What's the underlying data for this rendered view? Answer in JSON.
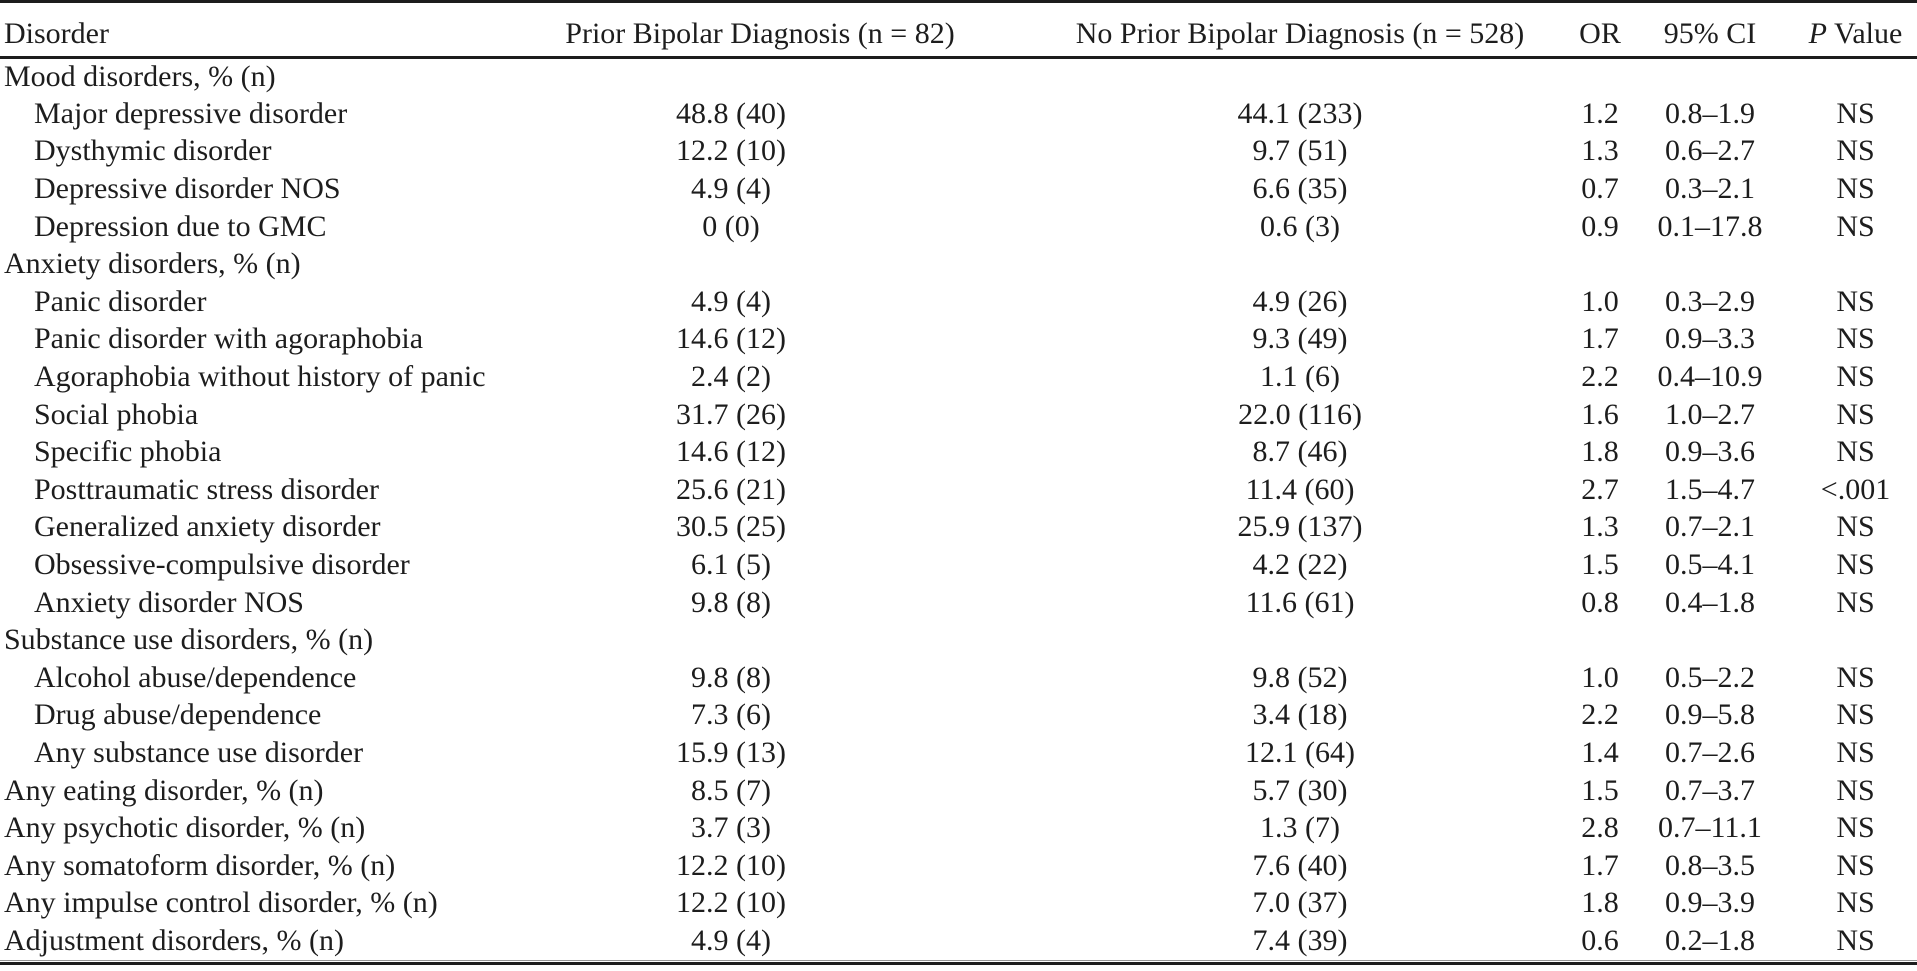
{
  "table": {
    "columns": [
      "Disorder",
      "Prior Bipolar Diagnosis (n = 82)",
      "No Prior Bipolar Diagnosis (n = 528)",
      "OR",
      "95% CI"
    ],
    "p_header": {
      "italic": "P",
      "rest": "Value"
    },
    "rows": [
      {
        "label": "Mood disorders, % (n)",
        "level": 0,
        "prior": "",
        "noprior": "",
        "or": "",
        "ci": "",
        "p": ""
      },
      {
        "label": "Major depressive disorder",
        "level": 1,
        "prior": "48.8 (40)",
        "noprior": "44.1 (233)",
        "or": "1.2",
        "ci": "0.8–1.9",
        "p": "NS"
      },
      {
        "label": "Dysthymic disorder",
        "level": 1,
        "prior": "12.2 (10)",
        "noprior": "9.7 (51)",
        "or": "1.3",
        "ci": "0.6–2.7",
        "p": "NS"
      },
      {
        "label": "Depressive disorder NOS",
        "level": 1,
        "prior": "4.9 (4)",
        "noprior": "6.6 (35)",
        "or": "0.7",
        "ci": "0.3–2.1",
        "p": "NS"
      },
      {
        "label": "Depression due to GMC",
        "level": 1,
        "prior": "0 (0)",
        "noprior": "0.6 (3)",
        "or": "0.9",
        "ci": "0.1–17.8",
        "p": "NS"
      },
      {
        "label": "Anxiety disorders, % (n)",
        "level": 0,
        "prior": "",
        "noprior": "",
        "or": "",
        "ci": "",
        "p": ""
      },
      {
        "label": "Panic disorder",
        "level": 1,
        "prior": "4.9 (4)",
        "noprior": "4.9 (26)",
        "or": "1.0",
        "ci": "0.3–2.9",
        "p": "NS"
      },
      {
        "label": "Panic disorder with agoraphobia",
        "level": 1,
        "prior": "14.6 (12)",
        "noprior": "9.3 (49)",
        "or": "1.7",
        "ci": "0.9–3.3",
        "p": "NS"
      },
      {
        "label": "Agoraphobia without history of panic",
        "level": 1,
        "prior": "2.4 (2)",
        "noprior": "1.1 (6)",
        "or": "2.2",
        "ci": "0.4–10.9",
        "p": "NS"
      },
      {
        "label": "Social phobia",
        "level": 1,
        "prior": "31.7 (26)",
        "noprior": "22.0 (116)",
        "or": "1.6",
        "ci": "1.0–2.7",
        "p": "NS"
      },
      {
        "label": "Specific phobia",
        "level": 1,
        "prior": "14.6 (12)",
        "noprior": "8.7 (46)",
        "or": "1.8",
        "ci": "0.9–3.6",
        "p": "NS"
      },
      {
        "label": "Posttraumatic stress disorder",
        "level": 1,
        "prior": "25.6 (21)",
        "noprior": "11.4 (60)",
        "or": "2.7",
        "ci": "1.5–4.7",
        "p": "<.001"
      },
      {
        "label": "Generalized anxiety disorder",
        "level": 1,
        "prior": "30.5 (25)",
        "noprior": "25.9 (137)",
        "or": "1.3",
        "ci": "0.7–2.1",
        "p": "NS"
      },
      {
        "label": "Obsessive-compulsive disorder",
        "level": 1,
        "prior": "6.1 (5)",
        "noprior": "4.2 (22)",
        "or": "1.5",
        "ci": "0.5–4.1",
        "p": "NS"
      },
      {
        "label": "Anxiety disorder NOS",
        "level": 1,
        "prior": "9.8 (8)",
        "noprior": "11.6 (61)",
        "or": "0.8",
        "ci": "0.4–1.8",
        "p": "NS"
      },
      {
        "label": "Substance use disorders, % (n)",
        "level": 0,
        "prior": "",
        "noprior": "",
        "or": "",
        "ci": "",
        "p": ""
      },
      {
        "label": "Alcohol abuse/dependence",
        "level": 1,
        "prior": "9.8 (8)",
        "noprior": "9.8 (52)",
        "or": "1.0",
        "ci": "0.5–2.2",
        "p": "NS"
      },
      {
        "label": "Drug abuse/dependence",
        "level": 1,
        "prior": "7.3 (6)",
        "noprior": "3.4 (18)",
        "or": "2.2",
        "ci": "0.9–5.8",
        "p": "NS"
      },
      {
        "label": "Any substance use disorder",
        "level": 1,
        "prior": "15.9 (13)",
        "noprior": "12.1 (64)",
        "or": "1.4",
        "ci": "0.7–2.6",
        "p": "NS"
      },
      {
        "label": "Any eating disorder, % (n)",
        "level": 0,
        "prior": "8.5 (7)",
        "noprior": "5.7 (30)",
        "or": "1.5",
        "ci": "0.7–3.7",
        "p": "NS"
      },
      {
        "label": "Any psychotic disorder, % (n)",
        "level": 0,
        "prior": "3.7 (3)",
        "noprior": "1.3 (7)",
        "or": "2.8",
        "ci": "0.7–11.1",
        "p": "NS"
      },
      {
        "label": "Any somatoform disorder, % (n)",
        "level": 0,
        "prior": "12.2 (10)",
        "noprior": "7.6 (40)",
        "or": "1.7",
        "ci": "0.8–3.5",
        "p": "NS"
      },
      {
        "label": "Any impulse control disorder, % (n)",
        "level": 0,
        "prior": "12.2 (10)",
        "noprior": "7.0 (37)",
        "or": "1.8",
        "ci": "0.9–3.9",
        "p": "NS"
      },
      {
        "label": "Adjustment disorders, % (n)",
        "level": 0,
        "prior": "4.9 (4)",
        "noprior": "7.4 (39)",
        "or": "0.6",
        "ci": "0.2–1.8",
        "p": "NS"
      }
    ]
  }
}
